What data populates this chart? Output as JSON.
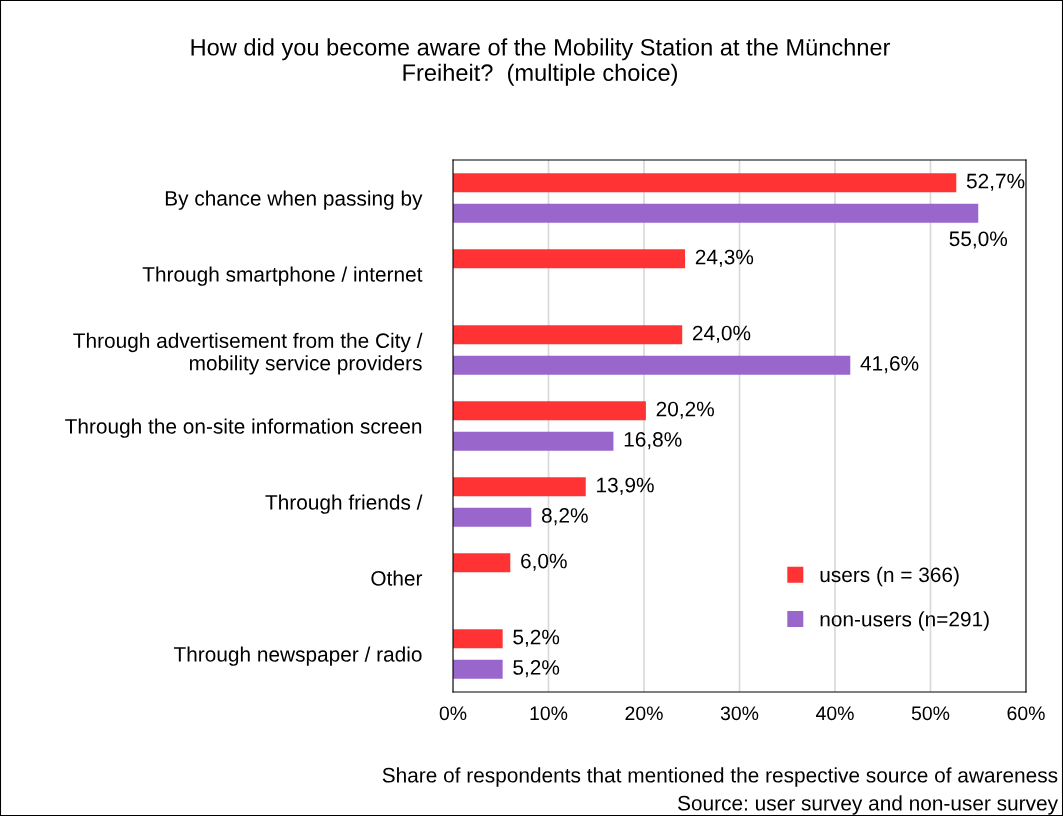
{
  "chart_data": {
    "type": "bar",
    "orientation": "horizontal",
    "title": "How did you become aware of the Mobility Station at the Münchner\nFreiheit?  (multiple choice)",
    "categories": [
      "By chance when passing by",
      "Through smartphone / internet",
      "Through advertisement from the City /\nmobility service providers",
      "Through the on-site information screen",
      "Through friends /",
      "Other",
      "Through newspaper / radio"
    ],
    "series": [
      {
        "name": "users (n = 366)",
        "color": "#ff3333",
        "values": [
          52.7,
          24.3,
          24.0,
          20.2,
          13.9,
          6.0,
          5.2
        ],
        "value_labels": [
          "52,7%",
          "24,3%",
          "24,0%",
          "20,2%",
          "13,9%",
          "6,0%",
          "5,2%"
        ]
      },
      {
        "name": "non-users (n=291)",
        "color": "#9966cc",
        "values": [
          55.0,
          null,
          41.6,
          16.8,
          8.2,
          null,
          5.2
        ],
        "value_labels": [
          "55,0%",
          null,
          "41,6%",
          "16,8%",
          "8,2%",
          null,
          "5,2%"
        ]
      }
    ],
    "xlim": [
      0,
      60
    ],
    "xticks": [
      {
        "value": 0,
        "label": "0%"
      },
      {
        "value": 10,
        "label": "10%"
      },
      {
        "value": 20,
        "label": "20%"
      },
      {
        "value": 30,
        "label": "30%"
      },
      {
        "value": 40,
        "label": "40%"
      },
      {
        "value": 50,
        "label": "50%"
      },
      {
        "value": 60,
        "label": "60%"
      }
    ],
    "grid": "x",
    "legend": "bottom right",
    "annotations": [
      "Share of respondents that mentioned the respective source of awareness",
      "Source: user survey and non-user survey"
    ]
  }
}
